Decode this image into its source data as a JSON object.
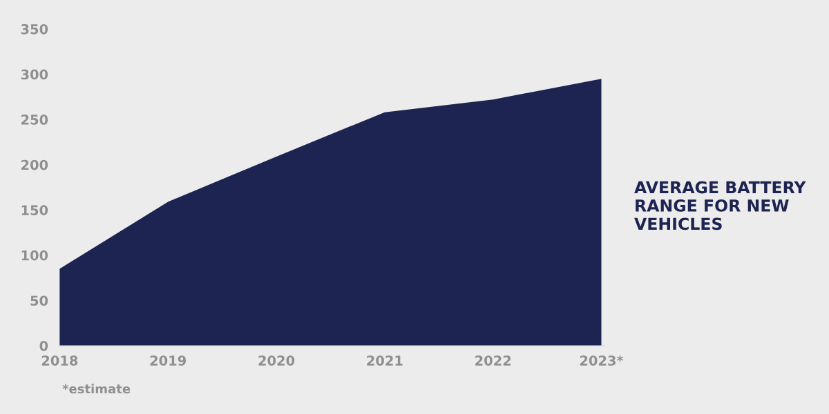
{
  "chart_data": {
    "type": "area",
    "title": "AVERAGE BATTERY RANGE FOR NEW VEHICLES",
    "categories": [
      "2018",
      "2019",
      "2020",
      "2021",
      "2022",
      "2023*"
    ],
    "series": [
      {
        "color": "#1e2452",
        "values": [
          85,
          159,
          209,
          258,
          272,
          295
        ]
      }
    ],
    "ylim": [
      0,
      350
    ],
    "yticks": [
      0,
      50,
      100,
      150,
      200,
      250,
      300,
      350
    ],
    "annotations": [
      "*estimate"
    ],
    "grid": false,
    "legend": false
  }
}
